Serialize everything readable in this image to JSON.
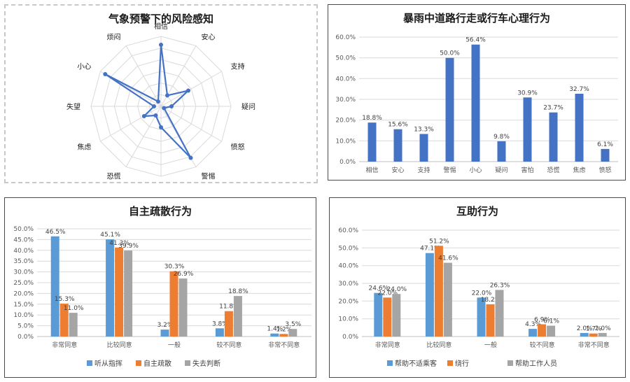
{
  "colors": {
    "blue": "#4472c4",
    "s1": "#5b9bd5",
    "s2": "#ed7d31",
    "s3": "#a5a5a5",
    "grid": "#d9d9d9",
    "axis": "#bfbfbf"
  },
  "chart_data": [
    {
      "type": "radar",
      "title": "气象预警下的风险感知",
      "categories": [
        "相信",
        "安心",
        "支持",
        "疑问",
        "愤怒",
        "警惕",
        "害怕",
        "恐慌",
        "焦虑",
        "失望",
        "小心",
        "烦闷"
      ],
      "values": [
        0.88,
        0.18,
        0.45,
        0.15,
        0.05,
        0.85,
        0.3,
        0.15,
        0.28,
        0.1,
        0.92,
        0.08
      ],
      "rmax": 1,
      "rings": 6,
      "grid": true,
      "legend": "none"
    },
    {
      "type": "bar",
      "title": "暴雨中道路行走或行车心理行为",
      "categories": [
        "相信",
        "安心",
        "支持",
        "警惕",
        "小心",
        "疑问",
        "害怕",
        "恐慌",
        "焦虑",
        "愤怒"
      ],
      "values": [
        18.8,
        15.6,
        13.3,
        50.0,
        56.4,
        9.8,
        30.9,
        23.7,
        32.7,
        6.1
      ],
      "labels": [
        "18.8%",
        "15.6%",
        "13.3%",
        "50.0%",
        "56.4%",
        "9.8%",
        "30.9%",
        "23.7%",
        "32.7%",
        "6.1%"
      ],
      "ylim": [
        0,
        60
      ],
      "yticks": [
        0,
        10,
        20,
        30,
        40,
        50,
        60
      ],
      "ytick_labels": [
        "0.0%",
        "10.0%",
        "20.0%",
        "30.0%",
        "40.0%",
        "50.0%",
        "60.0%"
      ],
      "grid": true,
      "legend": "none"
    },
    {
      "type": "bar",
      "title": "自主疏散行为",
      "categories": [
        "非常同意",
        "比较同意",
        "一般",
        "较不同意",
        "非常不同意"
      ],
      "series": [
        {
          "name": "听从指挥",
          "values": [
            46.5,
            45.1,
            3.2,
            3.8,
            1.4
          ],
          "labels": [
            "46.5%",
            "45.1%",
            "3.2%",
            "3.8%",
            "1.4%"
          ]
        },
        {
          "name": "自主疏散",
          "values": [
            15.3,
            41.3,
            30.3,
            11.8,
            1.2
          ],
          "labels": [
            "15.3%",
            "41.3%",
            "30.3%",
            "11.8%",
            "1.2%"
          ]
        },
        {
          "name": "失去判断",
          "values": [
            11.0,
            39.9,
            26.9,
            18.8,
            3.5
          ],
          "labels": [
            "11.0%",
            "39.9%",
            "26.9%",
            "18.8%",
            "3.5%"
          ]
        }
      ],
      "ylim": [
        0,
        50
      ],
      "yticks": [
        0,
        5,
        10,
        15,
        20,
        25,
        30,
        35,
        40,
        45,
        50
      ],
      "ytick_labels": [
        "0.0%",
        "5.0%",
        "10.0%",
        "15.0%",
        "20.0%",
        "25.0%",
        "30.0%",
        "35.0%",
        "40.0%",
        "45.0%",
        "50.0%"
      ],
      "grid": true,
      "legend": "bottom"
    },
    {
      "type": "bar",
      "title": "互助行为",
      "categories": [
        "非常同意",
        "比较同意",
        "一般",
        "较不同意",
        "非常不同意"
      ],
      "series": [
        {
          "name": "帮助不适乘客",
          "values": [
            24.6,
            47.1,
            22.0,
            4.3,
            2.0
          ],
          "labels": [
            "24.6%",
            "47.1%",
            "22.0%",
            "4.3%",
            "2.0%"
          ]
        },
        {
          "name": "绕行",
          "values": [
            22.0,
            51.2,
            18.2,
            6.9,
            1.7
          ],
          "labels": [
            "22.0%",
            "51.2%",
            "18.2%",
            "6.9%",
            "1.7%"
          ]
        },
        {
          "name": "帮助工作人员",
          "values": [
            24.0,
            41.6,
            26.3,
            6.1,
            2.0
          ],
          "labels": [
            "24.0%",
            "41.6%",
            "26.3%",
            "6.1%",
            "2.0%"
          ]
        }
      ],
      "ylim": [
        0,
        60
      ],
      "yticks": [
        0,
        10,
        20,
        30,
        40,
        50,
        60
      ],
      "ytick_labels": [
        "0.0%",
        "10.0%",
        "20.0%",
        "30.0%",
        "40.0%",
        "50.0%",
        "60.0%"
      ],
      "grid": true,
      "legend": "bottom"
    }
  ]
}
